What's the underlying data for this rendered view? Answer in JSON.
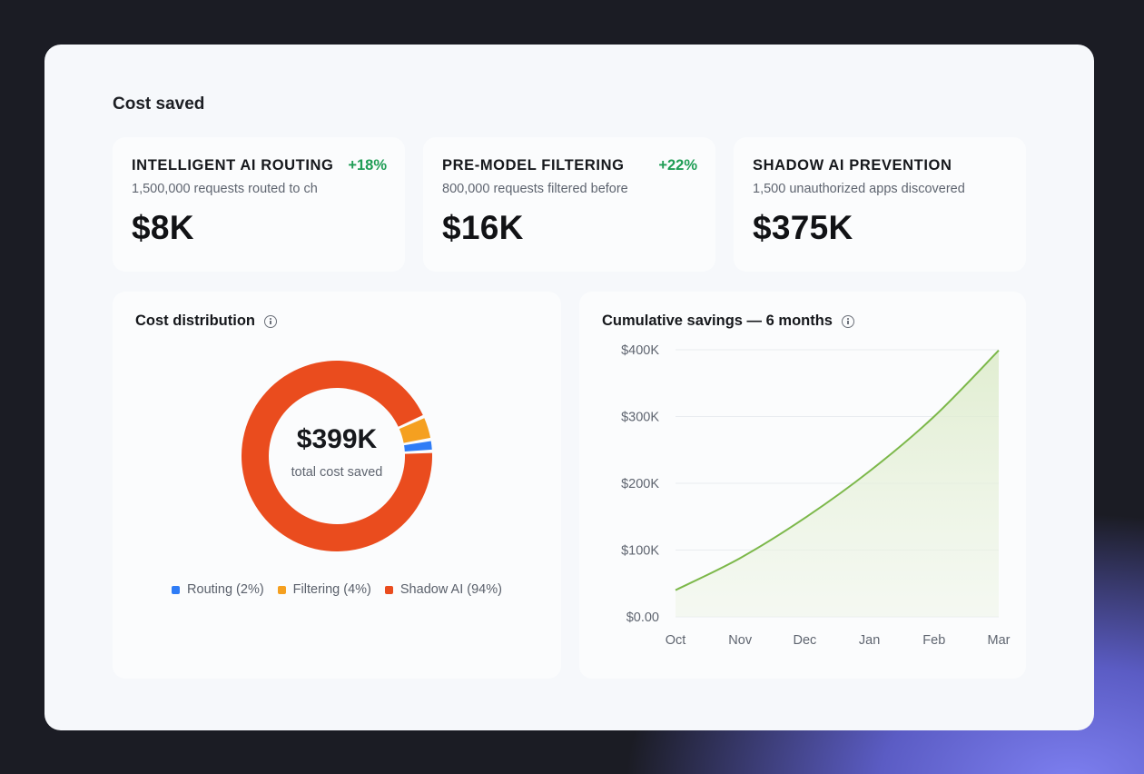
{
  "section_title": "Cost saved",
  "stat_cards": [
    {
      "title": "INTELLIGENT AI ROUTING",
      "change": "+18%",
      "subtitle": "1,500,000 requests routed to ch",
      "value": "$8K"
    },
    {
      "title": "PRE-MODEL FILTERING",
      "change": "+22%",
      "subtitle": "800,000 requests filtered before",
      "value": "$16K"
    },
    {
      "title": "SHADOW AI PREVENTION",
      "change": "",
      "subtitle": "1,500 unauthorized apps discovered",
      "value": "$375K"
    }
  ],
  "distribution": {
    "title": "Cost distribution",
    "info_icon": "info-icon",
    "total_value": "$399K",
    "total_label": "total cost saved",
    "legend": [
      {
        "label": "Routing (2%)",
        "color": "#2f7cf6"
      },
      {
        "label": "Filtering (4%)",
        "color": "#f5a020"
      },
      {
        "label": "Shadow AI (94%)",
        "color": "#ea4c1e"
      }
    ]
  },
  "savings": {
    "title": "Cumulative savings — 6 months",
    "info_icon": "info-icon"
  },
  "colors": {
    "positive": "#1f9d55",
    "line": "#7cb84a",
    "area": "#eef5e6"
  },
  "chart_data": [
    {
      "type": "pie",
      "categories": [
        "Routing",
        "Filtering",
        "Shadow AI"
      ],
      "values": [
        2,
        4,
        94
      ],
      "colors": [
        "#2f7cf6",
        "#f5a020",
        "#ea4c1e"
      ],
      "title": "Cost distribution",
      "legend": "bottom"
    },
    {
      "type": "area",
      "categories": [
        "Oct",
        "Nov",
        "Dec",
        "Jan",
        "Feb",
        "Mar"
      ],
      "values": [
        40000,
        88000,
        148000,
        218000,
        300000,
        399000
      ],
      "title": "Cumulative savings — 6 months",
      "xlabel": "",
      "ylabel": "",
      "ylim": [
        0,
        400000
      ],
      "yticks": [
        "$0.00",
        "$100K",
        "$200K",
        "$300K",
        "$400K"
      ],
      "grid": true
    }
  ]
}
